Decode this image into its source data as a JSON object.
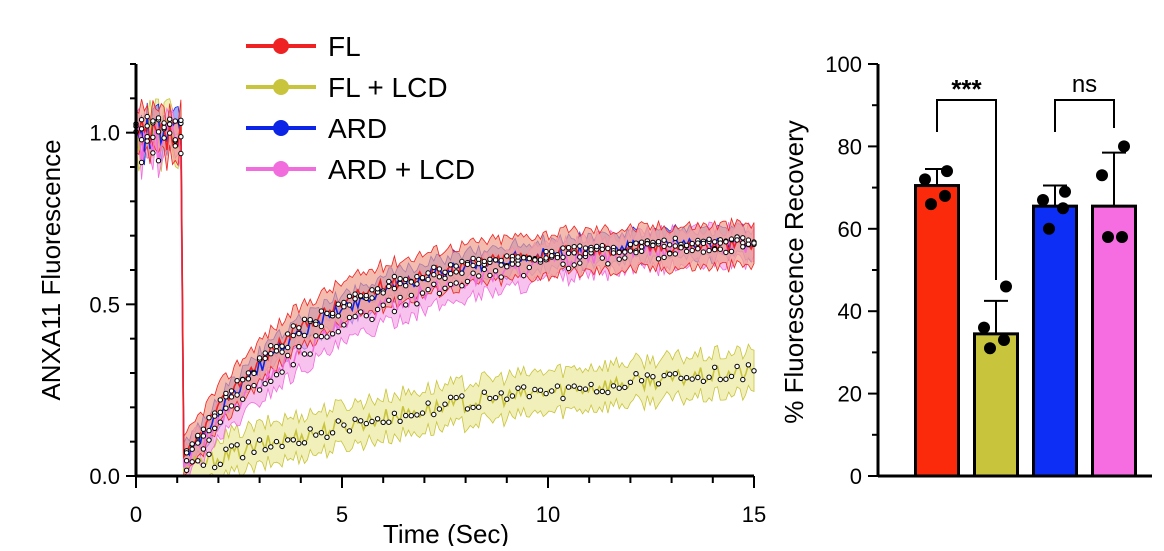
{
  "chart_data": [
    {
      "type": "line",
      "title": "",
      "xlabel": "Time (Sec)",
      "ylabel": "ANXA11 Fluorescence",
      "xlim": [
        0,
        15
      ],
      "ylim": [
        0,
        1.2
      ],
      "xticks": [
        0,
        5,
        10,
        15
      ],
      "xtick_labels": [
        "0",
        "5",
        "10",
        "15"
      ],
      "yticks": [
        0.0,
        0.5,
        1.0
      ],
      "ytick_labels": [
        "0.0",
        "0.5",
        "1.0"
      ],
      "bleach_time": 1.15,
      "legend_position": "top-left",
      "series": [
        {
          "name": "FL",
          "color": "#ee2222",
          "band_color": "#f0a08c",
          "baseline": 0.98,
          "plateau": 0.68,
          "tau": 3.0,
          "start": 0.04,
          "noise": 0.02,
          "band": 0.06
        },
        {
          "name": "FL + LCD",
          "color": "#c8c43c",
          "band_color": "#ecea9c",
          "baseline": 1.0,
          "plateau": 0.38,
          "tau": 9.0,
          "start": 0.02,
          "noise": 0.025,
          "band": 0.06
        },
        {
          "name": "ARD",
          "color": "#0b24e6",
          "band_color": "#7d8cf2",
          "baseline": 0.99,
          "plateau": 0.69,
          "tau": 3.3,
          "start": 0.04,
          "noise": 0.02,
          "band": 0.04
        },
        {
          "name": "ARD + LCD",
          "color": "#f16ddd",
          "band_color": "#f4a8e6",
          "baseline": 0.97,
          "plateau": 0.7,
          "tau": 4.2,
          "start": 0.03,
          "noise": 0.025,
          "band": 0.05
        }
      ]
    },
    {
      "type": "bar",
      "title": "",
      "xlabel": "",
      "ylabel": "% Fluorescence Recovery",
      "ylim": [
        0,
        100
      ],
      "yticks": [
        0,
        20,
        40,
        60,
        80,
        100
      ],
      "ytick_labels": [
        "0",
        "20",
        "40",
        "60",
        "80",
        "100"
      ],
      "categories": [
        "FL",
        "FL + LCD",
        "ARD",
        "ARD + LCD"
      ],
      "values": [
        70.5,
        34.5,
        65.5,
        65.5
      ],
      "errors": [
        4,
        8,
        5,
        13
      ],
      "colors": [
        "#fa2a0a",
        "#c8c43c",
        "#0d2ff5",
        "#f56de0"
      ],
      "points": [
        [
          74,
          72,
          68,
          66
        ],
        [
          46,
          36,
          33,
          31
        ],
        [
          69,
          67,
          65,
          60
        ],
        [
          80,
          73,
          58,
          58
        ]
      ],
      "significance": [
        {
          "pair": [
            0,
            1
          ],
          "label": "***"
        },
        {
          "pair": [
            2,
            3
          ],
          "label": "ns"
        }
      ]
    }
  ]
}
